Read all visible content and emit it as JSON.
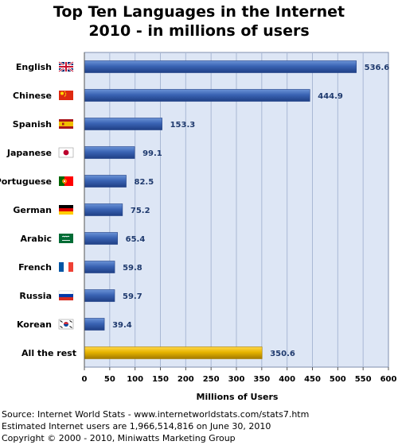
{
  "chart_data": {
    "type": "bar",
    "orientation": "horizontal",
    "title": "Top Ten Languages in the Internet",
    "subtitle": "2010 - in millions of users",
    "xlabel": "Millions of Users",
    "ylabel": "",
    "xlim": [
      0,
      600
    ],
    "xticks": [
      0,
      50,
      100,
      150,
      200,
      250,
      300,
      350,
      400,
      450,
      500,
      550,
      600
    ],
    "grid": true,
    "categories": [
      "English",
      "Chinese",
      "Spanish",
      "Japanese",
      "Portuguese",
      "German",
      "Arabic",
      "French",
      "Russia",
      "Korean",
      "All the rest"
    ],
    "values": [
      536.6,
      444.9,
      153.3,
      99.1,
      82.5,
      75.2,
      65.4,
      59.8,
      59.7,
      39.4,
      350.6
    ],
    "value_labels": [
      "536.6",
      "444.9",
      "153.3",
      "99.1",
      "82.5",
      "75.2",
      "65.4",
      "59.8",
      "59.7",
      "39.4",
      "350.6"
    ],
    "flags": [
      "flag-uk-icon",
      "flag-china-icon",
      "flag-spain-icon",
      "flag-japan-icon",
      "flag-portugal-icon",
      "flag-germany-icon",
      "flag-saudi-arabia-icon",
      "flag-france-icon",
      "flag-russia-icon",
      "flag-south-korea-icon",
      ""
    ],
    "colors": {
      "bar": "#3a64b4",
      "bar_light": "#6b93d6",
      "bar_dark": "#1f3f85",
      "highlight_bar": "#e6b400",
      "highlight_light": "#ffd84a",
      "highlight_dark": "#a37a00",
      "plot_background": "#dde6f5",
      "grid": "#a9b8d4",
      "value_label": "#1f3a6e"
    }
  },
  "footer": {
    "source": "Source: Internet World Stats - www.internetworldstats.com/stats7.htm",
    "estimate": "Estimated Internet users are 1,966,514,816 on June 30, 2010",
    "copyright": "Copyright © 2000 - 2010, Miniwatts Marketing Group"
  }
}
